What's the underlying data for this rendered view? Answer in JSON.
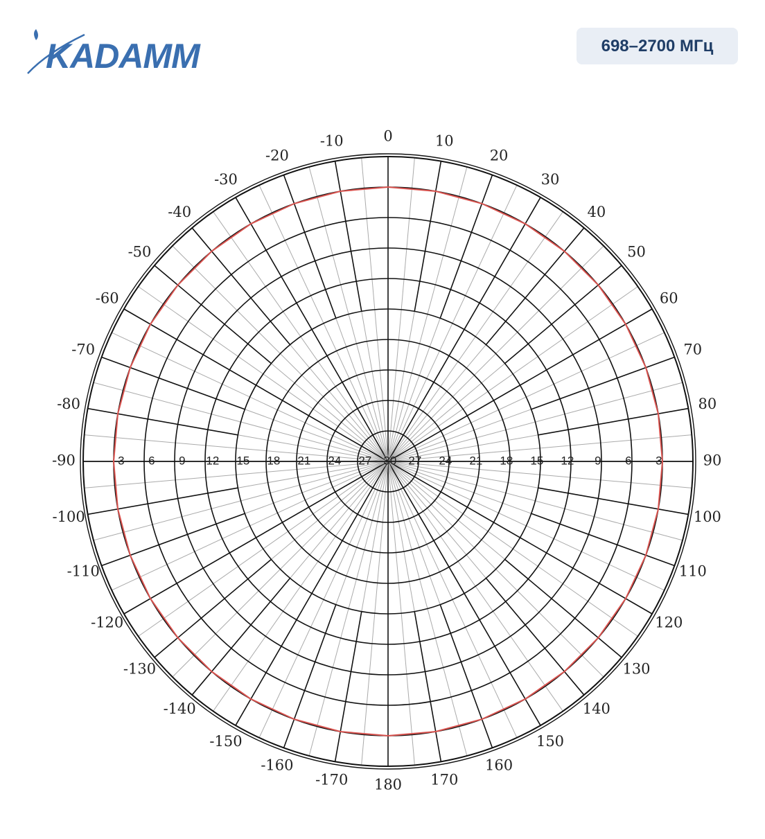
{
  "header": {
    "logo": "KADAMM",
    "badge": "698–2700 МГц"
  },
  "chart_data": {
    "type": "polar",
    "rlim": [
      -30,
      0
    ],
    "rticks": [
      -30,
      -27,
      -24,
      -21,
      -18,
      -15,
      -12,
      -9,
      -6,
      -3
    ],
    "angle_ticks": [
      0,
      10,
      20,
      30,
      40,
      50,
      60,
      70,
      80,
      90,
      100,
      110,
      120,
      130,
      140,
      150,
      160,
      170,
      180,
      -170,
      -160,
      -150,
      -140,
      -130,
      -120,
      -110,
      -100,
      -90,
      -80,
      -70,
      -60,
      -50,
      -40,
      -30,
      -20,
      -10
    ],
    "series": [
      {
        "color": "#d9534f",
        "theta": [
          0,
          10,
          20,
          30,
          40,
          50,
          60,
          70,
          80,
          90,
          100,
          110,
          120,
          130,
          140,
          150,
          160,
          170,
          180,
          190,
          200,
          210,
          220,
          230,
          240,
          250,
          260,
          270,
          280,
          290,
          300,
          310,
          320,
          330,
          340,
          350
        ],
        "values": [
          -3,
          -3,
          -3,
          -3,
          -3,
          -3,
          -3,
          -3,
          -3,
          -3,
          -3,
          -3,
          -3,
          -3,
          -3,
          -3,
          -3,
          -3,
          -3,
          -3,
          -3,
          -3,
          -3,
          -3,
          -3,
          -3,
          -3,
          -3,
          -3,
          -3,
          -3,
          -3,
          -3,
          -3,
          -3,
          -3
        ]
      }
    ]
  }
}
